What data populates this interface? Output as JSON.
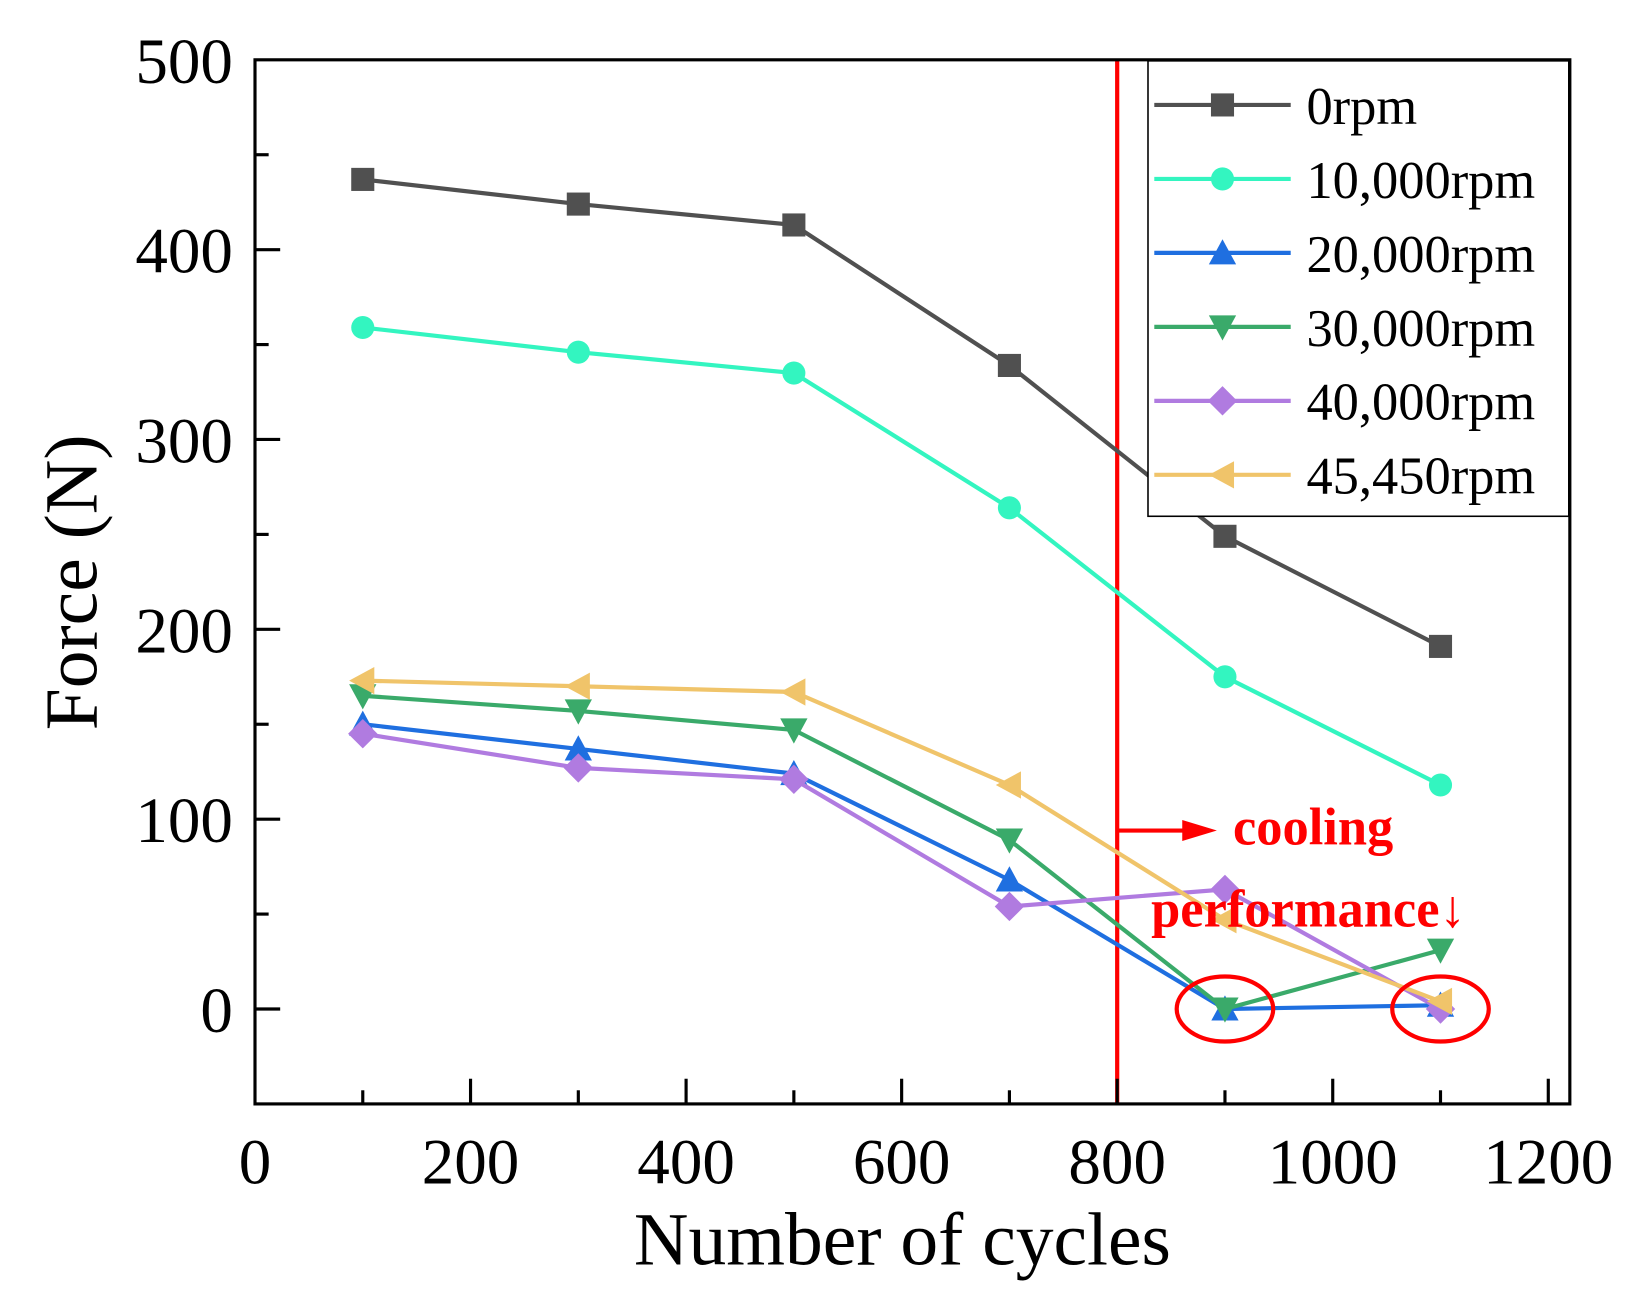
{
  "chart_data": {
    "type": "line",
    "title": "",
    "xlabel": "Number of cycles",
    "ylabel": "Force (N)",
    "xlim": [
      0,
      1220
    ],
    "ylim": [
      -50,
      500
    ],
    "xticks": [
      0,
      200,
      400,
      600,
      800,
      1000,
      1200
    ],
    "yticks": [
      0,
      100,
      200,
      300,
      400,
      500
    ],
    "grid": false,
    "legend_position": "top-right",
    "x": [
      100,
      300,
      500,
      700,
      900,
      1100
    ],
    "series": [
      {
        "name": "0rpm",
        "marker": "square",
        "color": "#505050",
        "values": [
          437,
          424,
          413,
          339,
          249,
          191
        ]
      },
      {
        "name": "10,000rpm",
        "marker": "circle",
        "color": "#33f5c0",
        "values": [
          359,
          346,
          335,
          264,
          175,
          118
        ]
      },
      {
        "name": "20,000rpm",
        "marker": "triangle-up",
        "color": "#1f6fe0",
        "values": [
          150,
          137,
          124,
          68,
          0,
          2
        ]
      },
      {
        "name": "30,000rpm",
        "marker": "triangle-down",
        "color": "#3aaa6a",
        "values": [
          165,
          157,
          147,
          89,
          0,
          31
        ]
      },
      {
        "name": "40,000rpm",
        "marker": "diamond",
        "color": "#b07be0",
        "values": [
          145,
          127,
          121,
          54,
          63,
          0
        ]
      },
      {
        "name": "45,450rpm",
        "marker": "triangle-left",
        "color": "#f0c46a",
        "values": [
          173,
          170,
          167,
          118,
          47,
          4
        ]
      }
    ],
    "annotations": {
      "vline_x": 800,
      "arrow_y": 94,
      "text_line1": "cooling",
      "text_line2": "performance↓",
      "circled_points": [
        [
          900,
          0
        ],
        [
          1100,
          0
        ]
      ],
      "color": "#ff0000"
    }
  }
}
